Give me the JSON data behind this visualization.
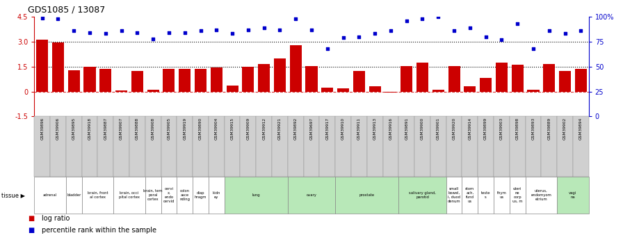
{
  "title": "GDS1085 / 13087",
  "sample_ids": [
    "GSM39896",
    "GSM39906",
    "GSM39895",
    "GSM39918",
    "GSM39887",
    "GSM39907",
    "GSM39888",
    "GSM39908",
    "GSM39905",
    "GSM39919",
    "GSM39890",
    "GSM39904",
    "GSM39915",
    "GSM39909",
    "GSM39912",
    "GSM39921",
    "GSM39892",
    "GSM39697",
    "GSM39917",
    "GSM39910",
    "GSM39911",
    "GSM39913",
    "GSM39916",
    "GSM39891",
    "GSM39900",
    "GSM39901",
    "GSM39920",
    "GSM39914",
    "GSM39899",
    "GSM39903",
    "GSM39898",
    "GSM39893",
    "GSM39889",
    "GSM39902",
    "GSM39894"
  ],
  "log_ratio": [
    3.12,
    2.97,
    1.3,
    1.5,
    1.35,
    0.07,
    1.25,
    0.1,
    1.35,
    1.35,
    1.35,
    1.45,
    0.35,
    1.5,
    1.65,
    2.0,
    2.8,
    1.55,
    0.25,
    0.2,
    1.25,
    0.3,
    -0.05,
    1.55,
    1.75,
    0.1,
    1.55,
    0.3,
    0.8,
    1.75,
    1.6,
    0.1,
    1.65,
    1.25,
    1.35
  ],
  "percentile_rank": [
    99,
    98,
    86,
    84,
    83,
    86,
    84,
    78,
    84,
    84,
    86,
    87,
    83,
    87,
    89,
    87,
    98,
    87,
    68,
    79,
    80,
    83,
    86,
    96,
    98,
    100,
    86,
    89,
    80,
    77,
    93,
    68,
    86,
    83,
    86
  ],
  "tissues": [
    {
      "label": "adrenal",
      "start": 0,
      "end": 2,
      "color": "#ffffff"
    },
    {
      "label": "bladder",
      "start": 2,
      "end": 3,
      "color": "#ffffff"
    },
    {
      "label": "brain, front\nal cortex",
      "start": 3,
      "end": 5,
      "color": "#ffffff"
    },
    {
      "label": "brain, occi\npital cortex",
      "start": 5,
      "end": 7,
      "color": "#ffffff"
    },
    {
      "label": "brain, tem\nporal\ncortex",
      "start": 7,
      "end": 8,
      "color": "#ffffff"
    },
    {
      "label": "cervi\nx,\nendo\ncervid",
      "start": 8,
      "end": 9,
      "color": "#ffffff"
    },
    {
      "label": "colon\nasce\nnding",
      "start": 9,
      "end": 10,
      "color": "#ffffff"
    },
    {
      "label": "diap\nhragm",
      "start": 10,
      "end": 11,
      "color": "#ffffff"
    },
    {
      "label": "kidn\ney",
      "start": 11,
      "end": 12,
      "color": "#ffffff"
    },
    {
      "label": "lung",
      "start": 12,
      "end": 16,
      "color": "#b8e8b8"
    },
    {
      "label": "ovary",
      "start": 16,
      "end": 19,
      "color": "#b8e8b8"
    },
    {
      "label": "prostate",
      "start": 19,
      "end": 23,
      "color": "#b8e8b8"
    },
    {
      "label": "salivary gland,\nparotid",
      "start": 23,
      "end": 26,
      "color": "#b8e8b8"
    },
    {
      "label": "small\nbowel,\ni, duod\ndenum",
      "start": 26,
      "end": 27,
      "color": "#ffffff"
    },
    {
      "label": "stom\nach,\nfund\nus",
      "start": 27,
      "end": 28,
      "color": "#ffffff"
    },
    {
      "label": "teste\ns",
      "start": 28,
      "end": 29,
      "color": "#ffffff"
    },
    {
      "label": "thym\nus",
      "start": 29,
      "end": 30,
      "color": "#ffffff"
    },
    {
      "label": "uteri\nne\ncorp\nus, m",
      "start": 30,
      "end": 31,
      "color": "#ffffff"
    },
    {
      "label": "uterus,\nendomyom\netrium",
      "start": 31,
      "end": 33,
      "color": "#ffffff"
    },
    {
      "label": "vagi\nna",
      "start": 33,
      "end": 35,
      "color": "#b8e8b8"
    }
  ],
  "ylim_left": [
    -1.5,
    4.5
  ],
  "ylim_right": [
    0,
    100
  ],
  "yticks_left": [
    -1.5,
    0,
    1.5,
    3.0,
    4.5
  ],
  "yticks_right": [
    0,
    25,
    50,
    75,
    100
  ],
  "ytick_labels_right": [
    "0",
    "25",
    "50",
    "75",
    "100%"
  ],
  "bar_color": "#cc0000",
  "dot_color": "#0000cc",
  "background_color": "#ffffff",
  "grey_label_bg": "#d0d0d0"
}
